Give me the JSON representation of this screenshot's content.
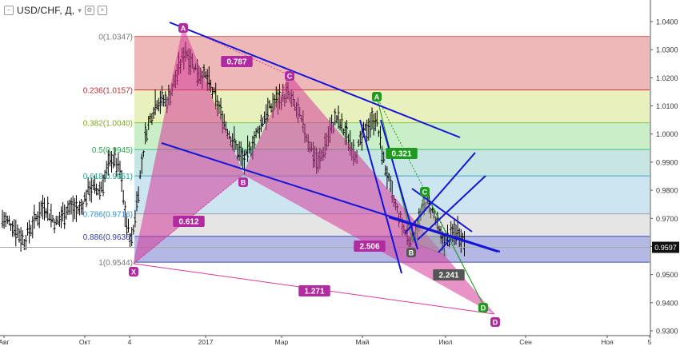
{
  "header": {
    "symbol": "USD/CHF, Д,",
    "icons": [
      "collapse-icon",
      "chevron-down-icon",
      "settings-icon",
      "close-icon"
    ]
  },
  "colors": {
    "pattern_pink": "#d63b9b",
    "pattern_purple": "#b12aa0",
    "trend_blue": "#1414d8",
    "green_label": "#1e9b1e",
    "price_bars": "#000000",
    "price_line": "#aaaaaa"
  },
  "chart_data": {
    "type": "ohlc",
    "price_axis": {
      "ticks": [
        "1.0400",
        "1.0300",
        "1.0200",
        "1.0100",
        "1.0000",
        "0.9900",
        "0.9800",
        "0.9700",
        "0.9600",
        "0.9500",
        "0.9400",
        "0.9300"
      ],
      "min": 0.93,
      "max": 1.04,
      "current_price": "0.9597"
    },
    "time_axis": {
      "ticks": [
        "Авг",
        "Окт",
        "4",
        "2017",
        "Мар",
        "Май",
        "Июл",
        "Сен",
        "Ноя",
        "5"
      ]
    },
    "fib_levels": [
      {
        "ratio": "0",
        "price": "1.0347",
        "label": "0(1.0347)",
        "label_color": "#777777",
        "line_color": "#e06060",
        "zone_color": "#e8a0a0"
      },
      {
        "ratio": "0.236",
        "price": "1.0157",
        "label": "0.236(1.0157)",
        "label_color": "#c03030",
        "line_color": "#d83030",
        "zone_color": "#e0eca8"
      },
      {
        "ratio": "0.382",
        "price": "1.0040",
        "label": "0.382(1.0040)",
        "label_color": "#7ea820",
        "line_color": "#8cc840",
        "zone_color": "#b8e8b4"
      },
      {
        "ratio": "0.5",
        "price": "0.9945",
        "label": "0.5(0.9945)",
        "label_color": "#27a84a",
        "line_color": "#40c080",
        "zone_color": "#b4dcd8"
      },
      {
        "ratio": "0.618",
        "price": "0.9851",
        "label": "0.618(0.9851)",
        "label_color": "#1fa08a",
        "line_color": "#40a8c8",
        "zone_color": "#bcdcec"
      },
      {
        "ratio": "0.786",
        "price": "0.9716",
        "label": "0.786(0.9716)",
        "label_color": "#3a8ac8",
        "line_color": "#9aa0a8",
        "zone_color": "#dcdcdc"
      },
      {
        "ratio": "0.886",
        "price": "0.9636",
        "label": "0.886(0.9636)",
        "label_color": "#3040a0",
        "line_color": "#4050b0",
        "zone_color": "#9aa0dc"
      },
      {
        "ratio": "1",
        "price": "0.9544",
        "label": "1(0.9544)",
        "label_color": "#777777",
        "line_color": "#4050b0",
        "zone_color": null
      }
    ],
    "harmonic_points": [
      {
        "label": "X",
        "color": "#b12aa0"
      },
      {
        "label": "A",
        "color": "#b12aa0"
      },
      {
        "label": "B",
        "color": "#b12aa0"
      },
      {
        "label": "C",
        "color": "#b12aa0"
      },
      {
        "label": "D",
        "color": "#b12aa0"
      },
      {
        "label": "A",
        "color": "#1e9b1e"
      },
      {
        "label": "B",
        "color": "#555555"
      },
      {
        "label": "C",
        "color": "#1e9b1e"
      },
      {
        "label": "D",
        "color": "#1e9b1e"
      }
    ],
    "ratio_labels": [
      {
        "text": "0.787",
        "color": "#b12aa0"
      },
      {
        "text": "0.612",
        "color": "#b12aa0"
      },
      {
        "text": "2.506",
        "color": "#b12aa0"
      },
      {
        "text": "1.271",
        "color": "#b12aa0"
      },
      {
        "text": "0.321",
        "color": "#1e9b1e"
      },
      {
        "text": "2.241",
        "color": "#555555"
      }
    ],
    "grid": false
  }
}
